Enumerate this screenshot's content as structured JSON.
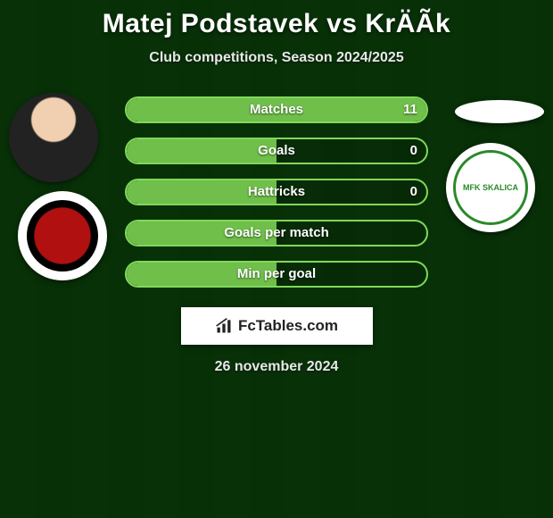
{
  "title": "Matej Podstavek vs KrÄÃ­k",
  "subtitle": "Club competitions, Season 2024/2025",
  "date": "26 november 2024",
  "brand_text": "FcTables.com",
  "colors": {
    "bar_border": "#7fd85a",
    "bar_fill": "#6fbf4a",
    "text": "#ffffff"
  },
  "bars": [
    {
      "label": "Matches",
      "value": "11",
      "fill_pct": 100
    },
    {
      "label": "Goals",
      "value": "0",
      "fill_pct": 50
    },
    {
      "label": "Hattricks",
      "value": "0",
      "fill_pct": 50
    },
    {
      "label": "Goals per match",
      "value": "",
      "fill_pct": 50
    },
    {
      "label": "Min per goal",
      "value": "",
      "fill_pct": 50
    }
  ],
  "club_right_text": "MFK SKALICA"
}
